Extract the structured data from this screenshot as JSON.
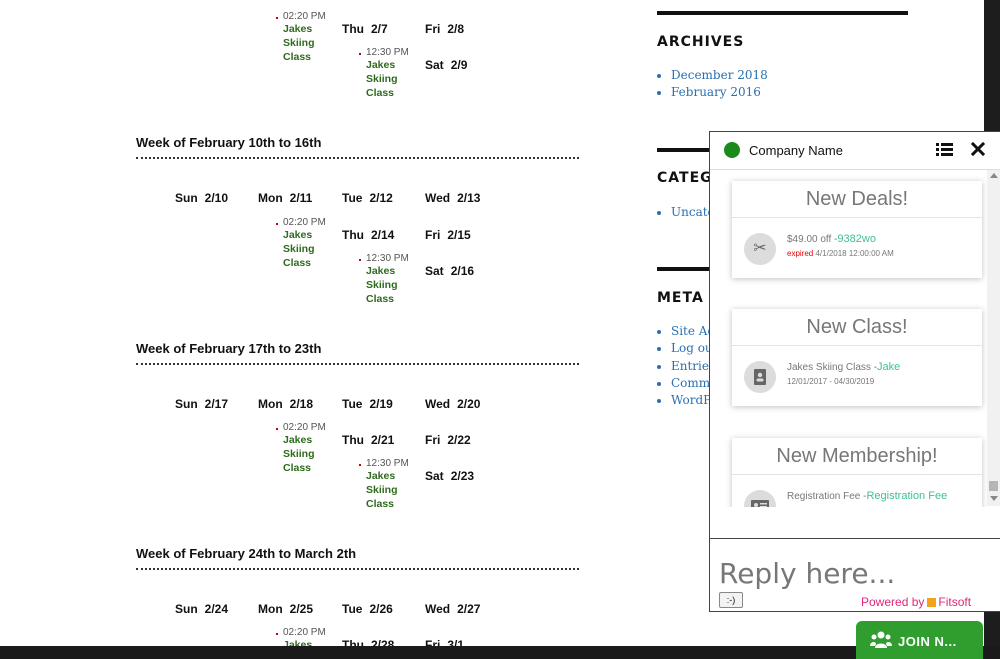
{
  "calendar": {
    "week_top": {
      "days": [
        {
          "name": "Thu",
          "date": "2/7"
        },
        {
          "name": "Fri",
          "date": "2/8"
        },
        {
          "name": "Sat",
          "date": "2/9"
        }
      ],
      "events": [
        {
          "time": "02:20 PM",
          "title": "Jakes Skiing Class"
        },
        {
          "time": "12:30 PM",
          "title": "Jakes Skiing Class"
        }
      ]
    },
    "weeks": [
      {
        "title": "Week of  February 10th to  16th",
        "days": [
          {
            "name": "Sun",
            "date": "2/10"
          },
          {
            "name": "Mon",
            "date": "2/11"
          },
          {
            "name": "Tue",
            "date": "2/12"
          },
          {
            "name": "Wed",
            "date": "2/13"
          },
          {
            "name": "Thu",
            "date": "2/14"
          },
          {
            "name": "Fri",
            "date": "2/15"
          },
          {
            "name": "Sat",
            "date": "2/16"
          }
        ],
        "events": [
          {
            "time": "02:20 PM",
            "title": "Jakes Skiing Class"
          },
          {
            "time": "12:30 PM",
            "title": "Jakes Skiing Class"
          }
        ]
      },
      {
        "title": "Week of  February 17th to  23th",
        "days": [
          {
            "name": "Sun",
            "date": "2/17"
          },
          {
            "name": "Mon",
            "date": "2/18"
          },
          {
            "name": "Tue",
            "date": "2/19"
          },
          {
            "name": "Wed",
            "date": "2/20"
          },
          {
            "name": "Thu",
            "date": "2/21"
          },
          {
            "name": "Fri",
            "date": "2/22"
          },
          {
            "name": "Sat",
            "date": "2/23"
          }
        ],
        "events": [
          {
            "time": "02:20 PM",
            "title": "Jakes Skiing Class"
          },
          {
            "time": "12:30 PM",
            "title": "Jakes Skiing Class"
          }
        ]
      },
      {
        "title": "Week of  February 24th to March 2th",
        "days": [
          {
            "name": "Sun",
            "date": "2/24"
          },
          {
            "name": "Mon",
            "date": "2/25"
          },
          {
            "name": "Tue",
            "date": "2/26"
          },
          {
            "name": "Wed",
            "date": "2/27"
          },
          {
            "name": "Thu",
            "date": "2/28"
          },
          {
            "name": "Fri",
            "date": "3/1"
          }
        ],
        "events": [
          {
            "time": "02:20 PM",
            "title": "Jakes"
          }
        ]
      }
    ]
  },
  "sidebar": {
    "archives": {
      "heading": "ARCHIVES",
      "items": [
        "December 2018",
        "February 2016"
      ]
    },
    "categories": {
      "heading": "CATEGO",
      "items": [
        "Uncate"
      ]
    },
    "meta": {
      "heading": "META",
      "items": [
        "Site Ad",
        "Log out",
        "Entries",
        "Comme",
        "WordP"
      ]
    }
  },
  "widget": {
    "company_name": "Company Name",
    "status_color": "#1a8a1a",
    "cards": [
      {
        "title": "New Deals!",
        "icon": "scissors-icon",
        "main": "$49.00 off -",
        "accent": "9382wo",
        "sub_label": "expired",
        "sub": "4/1/2018 12:00:00 AM"
      },
      {
        "title": "New Class!",
        "icon": "contact-book-icon",
        "main": "Jakes Skiing Class -",
        "accent": "Jake",
        "sub_label": "",
        "sub": "12/01/2017 - 04/30/2019"
      },
      {
        "title": "New Membership!",
        "icon": "id-card-icon",
        "main": "Registration Fee -",
        "accent": "Registration Fee",
        "sub_label": "",
        "sub": ""
      }
    ],
    "reply_placeholder": "Reply here...",
    "emoji_button": ":-)",
    "powered_by": "Powered by",
    "powered_brand": "Fitsoft",
    "join_label": "JOIN N..."
  }
}
